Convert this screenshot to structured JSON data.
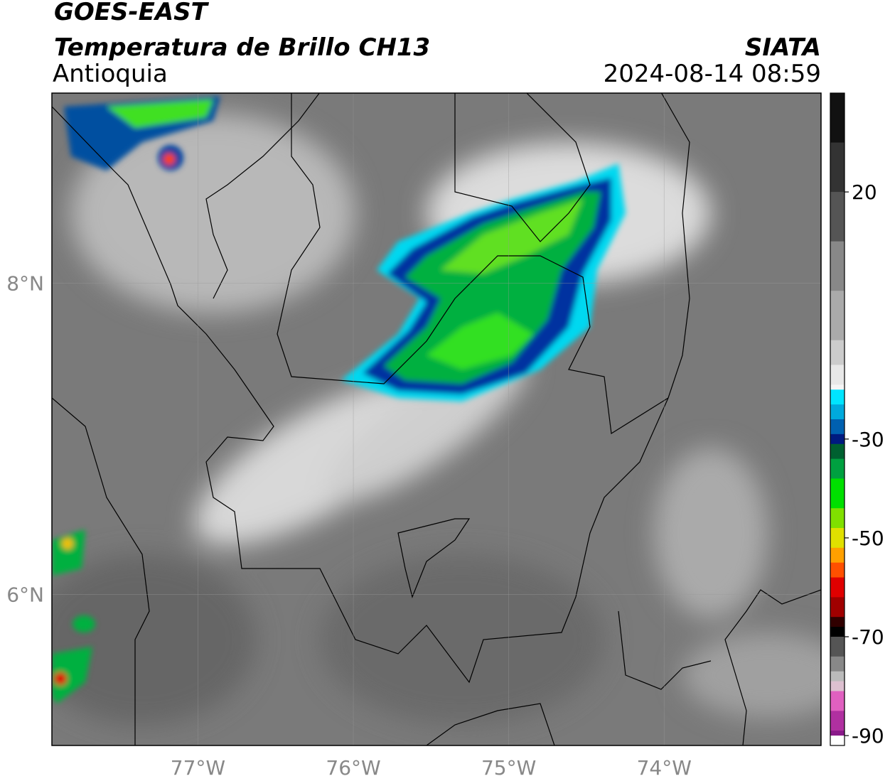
{
  "header": {
    "title": "GOES-EAST",
    "subtitle": "Temperatura de Brillo CH13",
    "region": "Antioquia",
    "agency": "SIATA",
    "datetime": "2024-08-14 08:59"
  },
  "map": {
    "xlim": [
      -77.94,
      -72.99
    ],
    "ylim": [
      5.03,
      9.22
    ],
    "xticks": [
      {
        "value": -77,
        "label": "77°W"
      },
      {
        "value": -76,
        "label": "76°W"
      },
      {
        "value": -75,
        "label": "75°W"
      },
      {
        "value": -74,
        "label": "74°W"
      }
    ],
    "yticks": [
      {
        "value": 8,
        "label": "8°N"
      },
      {
        "value": 6,
        "label": "6°N"
      }
    ],
    "grid": true
  },
  "colorbar": {
    "clim": [
      -92,
      40
    ],
    "ticks": [
      20,
      -30,
      -50,
      -70,
      -90
    ],
    "colormap": [
      {
        "value": 40,
        "color": "#111111"
      },
      {
        "value": 30,
        "color": "#333333"
      },
      {
        "value": 20,
        "color": "#555555"
      },
      {
        "value": 10,
        "color": "#888888"
      },
      {
        "value": 0,
        "color": "#aaaaaa"
      },
      {
        "value": -10,
        "color": "#cccccc"
      },
      {
        "value": -15,
        "color": "#e8e8e8"
      },
      {
        "value": -19,
        "color": "#f5f5f5"
      },
      {
        "value": -20,
        "color": "#00e5ff"
      },
      {
        "value": -23,
        "color": "#00aadd"
      },
      {
        "value": -26,
        "color": "#0060b0"
      },
      {
        "value": -29,
        "color": "#001a80"
      },
      {
        "value": -31,
        "color": "#006030"
      },
      {
        "value": -34,
        "color": "#00a040"
      },
      {
        "value": -38,
        "color": "#00e000"
      },
      {
        "value": -44,
        "color": "#80e000"
      },
      {
        "value": -48,
        "color": "#e0e000"
      },
      {
        "value": -52,
        "color": "#ffa000"
      },
      {
        "value": -55,
        "color": "#ff5000"
      },
      {
        "value": -58,
        "color": "#e00000"
      },
      {
        "value": -62,
        "color": "#a00000"
      },
      {
        "value": -66,
        "color": "#300000"
      },
      {
        "value": -68,
        "color": "#000000"
      },
      {
        "value": -70,
        "color": "#555555"
      },
      {
        "value": -74,
        "color": "#888888"
      },
      {
        "value": -77,
        "color": "#bbbbbb"
      },
      {
        "value": -79,
        "color": "#ddc0d0"
      },
      {
        "value": -81,
        "color": "#e060c0"
      },
      {
        "value": -85,
        "color": "#b030a0"
      },
      {
        "value": -89,
        "color": "#8a1a8a"
      },
      {
        "value": -90,
        "color": "#ffffff"
      }
    ]
  }
}
